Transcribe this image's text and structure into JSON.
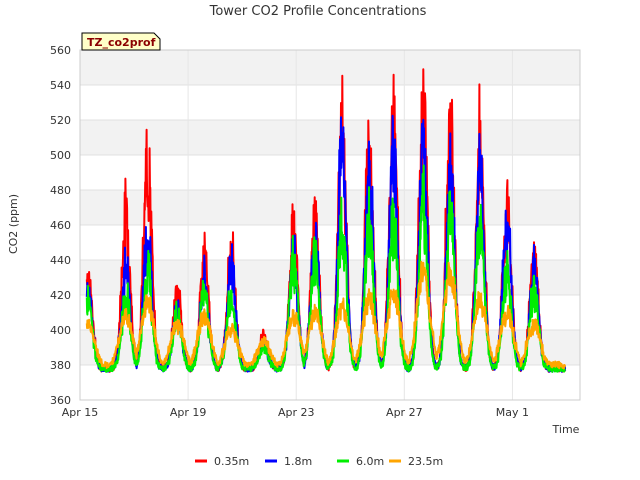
{
  "chart_data": {
    "type": "line",
    "title": "Tower CO2 Profile Concentrations",
    "badge": "TZ_co2prof",
    "xlabel": "Time",
    "ylabel": "CO2 (ppm)",
    "xlim": [
      0,
      18.5
    ],
    "ylim": [
      360,
      560
    ],
    "y_ticks": [
      360,
      380,
      400,
      420,
      440,
      460,
      480,
      500,
      520,
      540,
      560
    ],
    "x_ticks": [
      {
        "value": 0,
        "label": "Apr 15"
      },
      {
        "value": 4,
        "label": "Apr 19"
      },
      {
        "value": 8,
        "label": "Apr 23"
      },
      {
        "value": 12,
        "label": "Apr 27"
      },
      {
        "value": 16,
        "label": "May 1"
      }
    ],
    "x_units": "days since Apr 15",
    "daily_peaks": {
      "days": [
        0.3,
        1.7,
        2.5,
        3.6,
        4.6,
        5.6,
        6.8,
        7.9,
        8.7,
        9.7,
        10.7,
        11.6,
        12.7,
        13.7,
        14.8,
        15.8,
        16.8
      ],
      "series": [
        {
          "name": "0.35m",
          "color": "#ff0000",
          "values": [
            438,
            475,
            507,
            425,
            448,
            451,
            397,
            466,
            470,
            529,
            518,
            536,
            547,
            526,
            522,
            483,
            451
          ]
        },
        {
          "name": "1.8m",
          "color": "#0000ff",
          "values": [
            428,
            440,
            461,
            415,
            435,
            443,
            392,
            452,
            457,
            516,
            501,
            512,
            515,
            503,
            498,
            472,
            441
          ]
        },
        {
          "name": "6.0m",
          "color": "#00ee00",
          "values": [
            420,
            423,
            440,
            411,
            427,
            425,
            390,
            446,
            447,
            470,
            470,
            471,
            481,
            477,
            470,
            439,
            428
          ]
        },
        {
          "name": "23.5m",
          "color": "#ffa500",
          "values": [
            405,
            410,
            420,
            405,
            411,
            402,
            394,
            410,
            412,
            415,
            420,
            425,
            440,
            435,
            420,
            412,
            405
          ]
        }
      ]
    },
    "nightly_baseline_ppm": 376,
    "legend": {
      "position": "bottom-center",
      "entries": [
        "0.35m",
        "1.8m",
        "6.0m",
        "23.5m"
      ]
    }
  }
}
